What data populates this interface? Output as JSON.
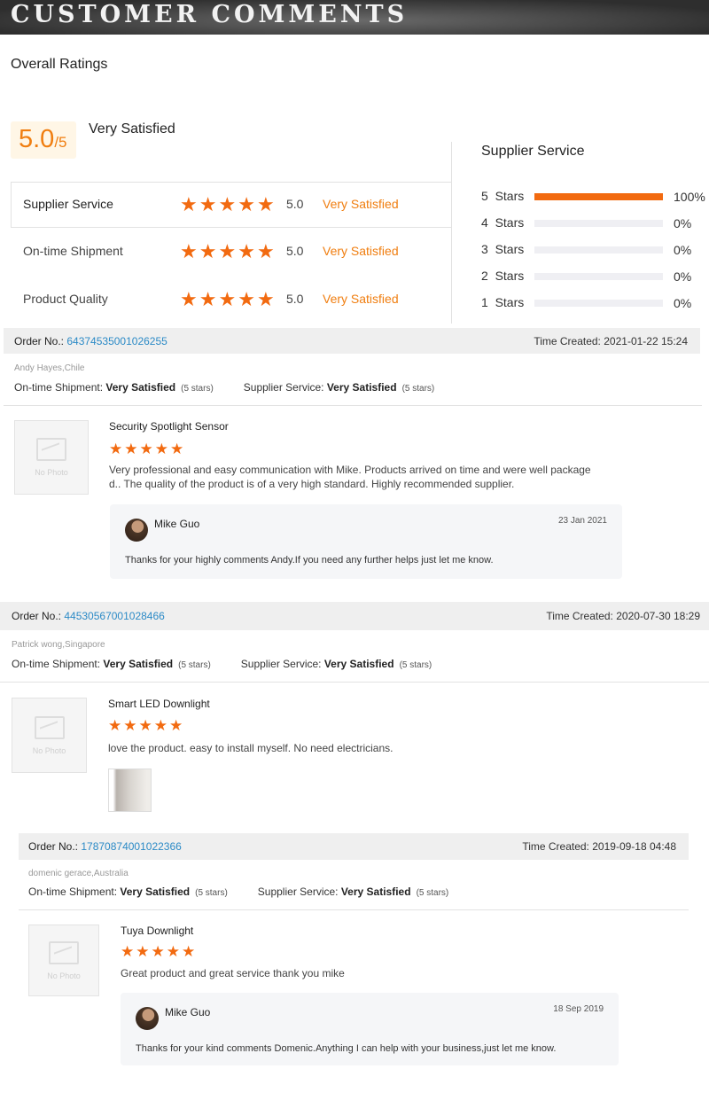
{
  "header": {
    "title": "CUSTOMER COMMENTS"
  },
  "overall": {
    "heading": "Overall Ratings",
    "score": "5.0",
    "out_of": "/5",
    "label": "Very Satisfied",
    "rows": [
      {
        "name": "Supplier Service",
        "score": "5.0",
        "label": "Very Satisfied",
        "stars": 5
      },
      {
        "name": "On-time Shipment",
        "score": "5.0",
        "label": "Very Satisfied",
        "stars": 5
      },
      {
        "name": "Product Quality",
        "score": "5.0",
        "label": "Very Satisfied",
        "stars": 5
      }
    ]
  },
  "distribution": {
    "title": "Supplier Service",
    "rows": [
      {
        "label": "5  Stars",
        "percent": 100,
        "text": "100%"
      },
      {
        "label": "4  Stars",
        "percent": 0,
        "text": "0%"
      },
      {
        "label": "3  Stars",
        "percent": 0,
        "text": "0%"
      },
      {
        "label": "2  Stars",
        "percent": 0,
        "text": "0%"
      },
      {
        "label": "1  Stars",
        "percent": 0,
        "text": "0%"
      }
    ]
  },
  "labels": {
    "order_no": "Order No.:",
    "time_created": "Time Created:",
    "ontime": "On-time Shipment:",
    "supplier": "Supplier Service:",
    "no_photo": "No Photo"
  },
  "colors": {
    "accent": "#f26a10",
    "link": "#2b8ac6"
  },
  "reviews": [
    {
      "order": "64374535001026255",
      "time": "2021-01-22 15:24",
      "customer": "Andy Hayes,Chile",
      "ontime": "Very Satisfied",
      "ontime_stars": "(5 stars)",
      "supplier": "Very Satisfied",
      "supplier_stars": "(5 stars)",
      "product": "Security Spotlight Sensor",
      "rating": 5,
      "text": "Very professional and easy communication with Mike. Products arrived on time and were well packaged.. The quality of the product is of a very high standard. Highly recommended supplier.",
      "reply": {
        "name": "Mike Guo",
        "date": "23 Jan 2021",
        "text": "Thanks for your highly comments Andy.If you need any further helps just let me know."
      }
    },
    {
      "order": "44530567001028466",
      "time": "2020-07-30 18:29",
      "customer": "Patrick wong,Singapore",
      "ontime": "Very Satisfied",
      "ontime_stars": "(5 stars)",
      "supplier": "Very Satisfied",
      "supplier_stars": "(5 stars)",
      "product": "Smart LED Downlight",
      "rating": 5,
      "text": "love the product. easy to install myself. No need electricians."
    },
    {
      "order": "17870874001022366",
      "time": "2019-09-18 04:48",
      "customer": "domenic gerace,Australia",
      "ontime": "Very Satisfied",
      "ontime_stars": "(5 stars)",
      "supplier": "Very Satisfied",
      "supplier_stars": "(5 stars)",
      "product": "Tuya Downlight",
      "rating": 5,
      "text": "Great product and great service thank you mike",
      "reply": {
        "name": "Mike Guo",
        "date": "18 Sep 2019",
        "text": "Thanks for your kind comments Domenic.Anything I can help with your business,just let me know."
      }
    }
  ]
}
